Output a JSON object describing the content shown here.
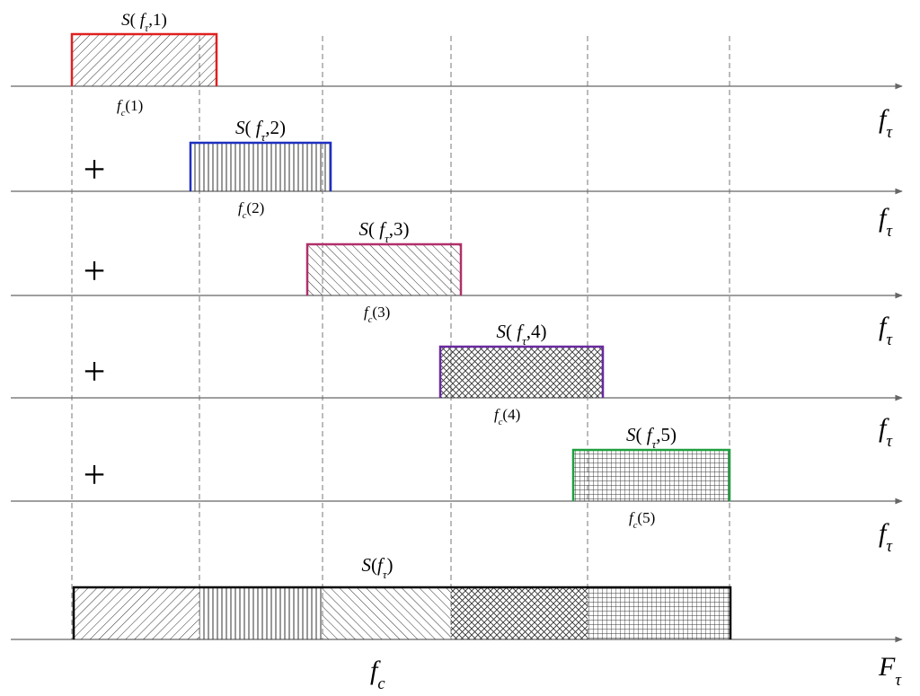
{
  "rows": [
    {
      "band_label_S": "S",
      "band_label_f": "f",
      "band_label_tau": "τ",
      "band_label_idx": "1",
      "center_label_f": "f",
      "center_label_c": "c",
      "center_label_idx": "(1)",
      "axis_label_f": "f",
      "axis_label_tau": "τ",
      "edge_color": "#e02020",
      "pattern": "hatch-fwd"
    },
    {
      "band_label_S": "S",
      "band_label_f": "f",
      "band_label_tau": "τ",
      "band_label_idx": "2",
      "center_label_f": "f",
      "center_label_c": "c",
      "center_label_idx": "(2)",
      "axis_label_f": "f",
      "axis_label_tau": "τ",
      "edge_color": "#1f2fc0",
      "pattern": "vertical",
      "plus": "+"
    },
    {
      "band_label_S": "S",
      "band_label_f": "f",
      "band_label_tau": "τ",
      "band_label_idx": "3",
      "center_label_f": "f",
      "center_label_c": "c",
      "center_label_idx": "(3)",
      "axis_label_f": "f",
      "axis_label_tau": "τ",
      "edge_color": "#b0306a",
      "pattern": "hatch-back",
      "plus": "+"
    },
    {
      "band_label_S": "S",
      "band_label_f": "f",
      "band_label_tau": "τ",
      "band_label_idx": "4",
      "center_label_f": "f",
      "center_label_c": "c",
      "center_label_idx": "(4)",
      "axis_label_f": "f",
      "axis_label_tau": "τ",
      "edge_color": "#6a2aa0",
      "pattern": "crosshatch",
      "plus": "+"
    },
    {
      "band_label_S": "S",
      "band_label_f": "f",
      "band_label_tau": "τ",
      "band_label_idx": "5",
      "center_label_f": "f",
      "center_label_c": "c",
      "center_label_idx": "(5)",
      "axis_label_f": "f",
      "axis_label_tau": "τ",
      "edge_color": "#20a040",
      "pattern": "grid",
      "plus": "+"
    }
  ],
  "sum": {
    "label_S": "S",
    "label_f": "f",
    "label_tau": "τ",
    "center_label_f": "f",
    "center_label_c": "c",
    "axis_label_F": "F",
    "axis_label_tau": "τ",
    "edge_color": "#000000"
  }
}
